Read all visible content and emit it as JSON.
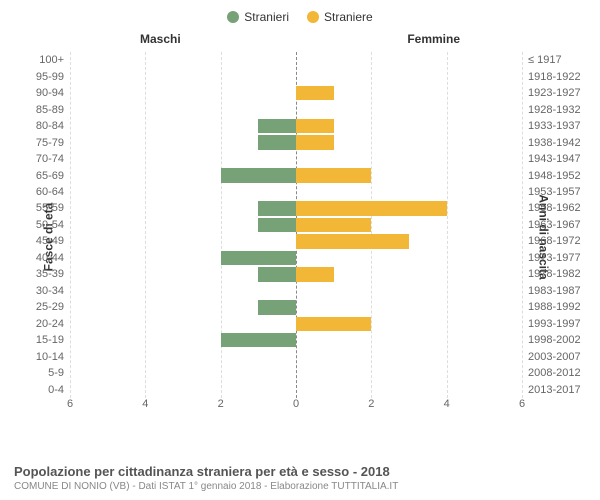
{
  "chart": {
    "type": "bar-pyramid",
    "legend": [
      {
        "label": "Stranieri",
        "color": "#77a277"
      },
      {
        "label": "Straniere",
        "color": "#f2b736"
      }
    ],
    "section_headers": {
      "left": "Maschi",
      "right": "Femmine"
    },
    "y_axis_left_title": "Fasce di età",
    "y_axis_right_title": "Anni di nascita",
    "x_axis": {
      "min": -6,
      "max": 6,
      "ticks_left": [
        6,
        4,
        2,
        0
      ],
      "ticks_right": [
        0,
        2,
        4,
        6
      ]
    },
    "bar_colors": {
      "male": "#77a277",
      "female": "#f2b736"
    },
    "grid_color": "#dddddd",
    "centerline_color": "#888888",
    "background": "#ffffff",
    "font_size_labels": 11,
    "font_size_titles": 12,
    "rows": [
      {
        "age": "100+",
        "birth": "≤ 1917",
        "male": 0,
        "female": 0
      },
      {
        "age": "95-99",
        "birth": "1918-1922",
        "male": 0,
        "female": 0
      },
      {
        "age": "90-94",
        "birth": "1923-1927",
        "male": 0,
        "female": 1
      },
      {
        "age": "85-89",
        "birth": "1928-1932",
        "male": 0,
        "female": 0
      },
      {
        "age": "80-84",
        "birth": "1933-1937",
        "male": 1,
        "female": 1
      },
      {
        "age": "75-79",
        "birth": "1938-1942",
        "male": 1,
        "female": 1
      },
      {
        "age": "70-74",
        "birth": "1943-1947",
        "male": 0,
        "female": 0
      },
      {
        "age": "65-69",
        "birth": "1948-1952",
        "male": 2,
        "female": 2
      },
      {
        "age": "60-64",
        "birth": "1953-1957",
        "male": 0,
        "female": 0
      },
      {
        "age": "55-59",
        "birth": "1958-1962",
        "male": 1,
        "female": 4
      },
      {
        "age": "50-54",
        "birth": "1963-1967",
        "male": 1,
        "female": 2
      },
      {
        "age": "45-49",
        "birth": "1968-1972",
        "male": 0,
        "female": 3
      },
      {
        "age": "40-44",
        "birth": "1973-1977",
        "male": 2,
        "female": 0
      },
      {
        "age": "35-39",
        "birth": "1978-1982",
        "male": 1,
        "female": 1
      },
      {
        "age": "30-34",
        "birth": "1983-1987",
        "male": 0,
        "female": 0
      },
      {
        "age": "25-29",
        "birth": "1988-1992",
        "male": 1,
        "female": 0
      },
      {
        "age": "20-24",
        "birth": "1993-1997",
        "male": 0,
        "female": 2
      },
      {
        "age": "15-19",
        "birth": "1998-2002",
        "male": 2,
        "female": 0
      },
      {
        "age": "10-14",
        "birth": "2003-2007",
        "male": 0,
        "female": 0
      },
      {
        "age": "5-9",
        "birth": "2008-2012",
        "male": 0,
        "female": 0
      },
      {
        "age": "0-4",
        "birth": "2013-2017",
        "male": 0,
        "female": 0
      }
    ],
    "footer_title": "Popolazione per cittadinanza straniera per età e sesso - 2018",
    "footer_sub": "COMUNE DI NONIO (VB) - Dati ISTAT 1° gennaio 2018 - Elaborazione TUTTITALIA.IT"
  }
}
